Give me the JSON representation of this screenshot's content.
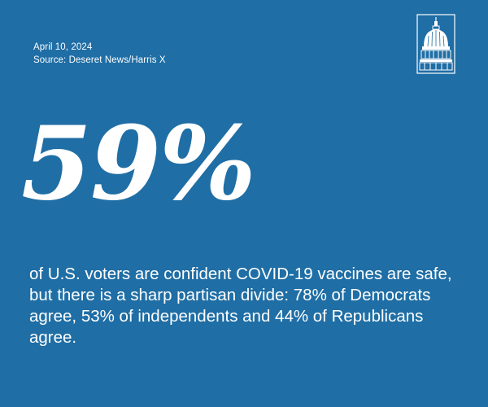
{
  "header": {
    "date": "April 10, 2024",
    "source": "Source: Deseret News/Harris X"
  },
  "logo": {
    "icon": "capitol-dome-icon",
    "color": "#ffffff"
  },
  "stat": {
    "value": "59%"
  },
  "caption": {
    "text": "of U.S. voters are confident COVID-19 vaccines are safe, but there is a sharp partisan divide: 78% of Democrats agree, 53% of independents and 44% of Republicans agree."
  },
  "colors": {
    "background": "#1f6ea5",
    "text": "#ffffff"
  }
}
